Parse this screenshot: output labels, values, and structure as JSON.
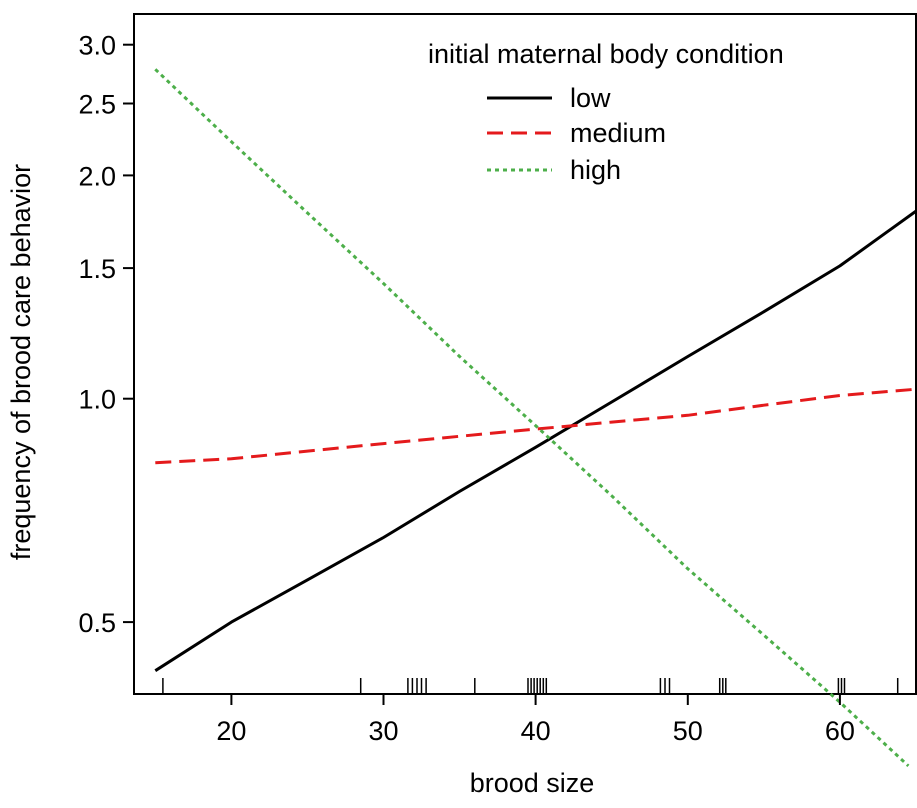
{
  "chart_data": {
    "type": "line",
    "title": "",
    "xlabel": "brood size",
    "ylabel": "frequency of brood care behavior",
    "y_scale": "log",
    "xlim": [
      13.6,
      65
    ],
    "ylim": [
      0.4,
      3.3
    ],
    "x_ticks": [
      20,
      30,
      40,
      50,
      60
    ],
    "x_tick_labels": [
      "20",
      "30",
      "40",
      "50",
      "60"
    ],
    "y_ticks": [
      0.5,
      1.0,
      1.5,
      2.0,
      2.5,
      3.0
    ],
    "y_tick_labels": [
      "0.5",
      "1.0",
      "1.5",
      "2.0",
      "2.5",
      "3.0"
    ],
    "grid": false,
    "legend": {
      "title": "initial maternal body condition",
      "placement": "top-right"
    },
    "series": [
      {
        "name": "low",
        "color": "#000000",
        "dash": "solid",
        "x": [
          15,
          20,
          25,
          30,
          35,
          40,
          45,
          50,
          55,
          60,
          65
        ],
        "y": [
          0.43,
          0.5,
          0.57,
          0.65,
          0.75,
          0.86,
          0.99,
          1.14,
          1.31,
          1.51,
          1.79
        ]
      },
      {
        "name": "medium",
        "color": "#e41a1c",
        "dash": "dashed",
        "x": [
          15,
          20,
          25,
          30,
          35,
          40,
          45,
          50,
          55,
          60,
          65
        ],
        "y": [
          0.82,
          0.83,
          0.85,
          0.87,
          0.89,
          0.91,
          0.93,
          0.95,
          0.98,
          1.01,
          1.03
        ]
      },
      {
        "name": "high",
        "color": "#4daf4a",
        "dash": "dotted",
        "x": [
          15,
          20,
          25,
          30,
          35,
          40,
          45,
          50,
          55,
          60,
          64.5
        ],
        "y": [
          2.78,
          2.22,
          1.78,
          1.43,
          1.14,
          0.92,
          0.74,
          0.59,
          0.48,
          0.39,
          0.32
        ]
      }
    ],
    "rug_x": [
      15.5,
      28.5,
      31.6,
      31.9,
      32.2,
      32.5,
      32.8,
      36.0,
      39.5,
      39.7,
      39.9,
      40.1,
      40.3,
      40.5,
      40.7,
      48.2,
      48.5,
      48.8,
      52.1,
      52.3,
      52.5,
      59.9,
      60.1,
      60.3,
      63.8
    ]
  }
}
